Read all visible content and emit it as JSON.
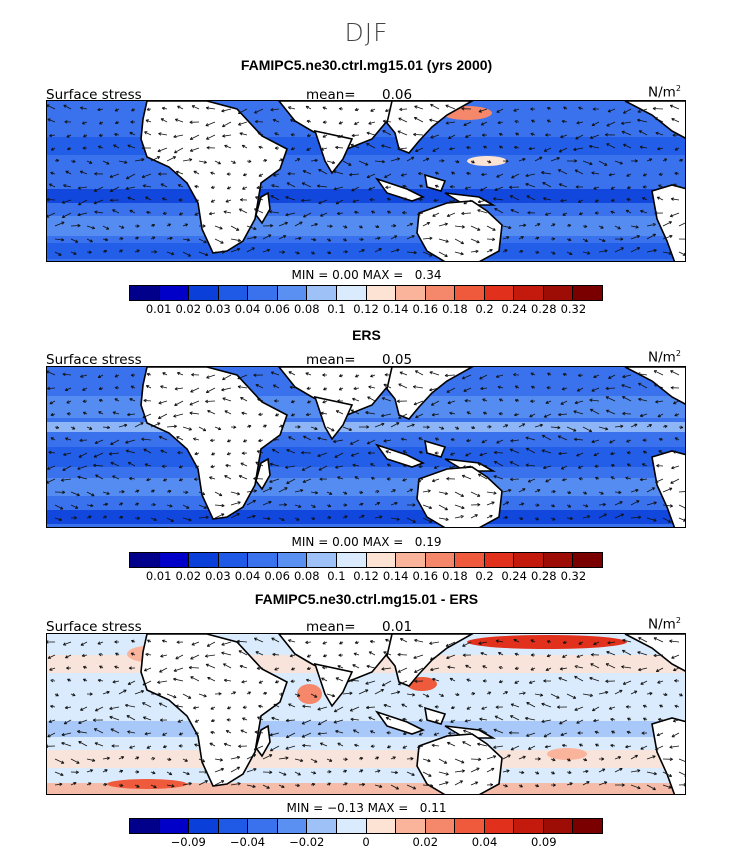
{
  "title": "DJF",
  "colorbar_std": {
    "colors": [
      "#00008b",
      "#0000c8",
      "#0a3fd9",
      "#1f5ae6",
      "#3a72ee",
      "#5a90f2",
      "#9ec2f7",
      "#d9ebfc",
      "#fde3d4",
      "#f9b49b",
      "#f5876a",
      "#ee5a3b",
      "#e1301b",
      "#c41a0e",
      "#9e0d05",
      "#7a0000"
    ],
    "labels": [
      "0.01",
      "0.02",
      "0.03",
      "0.04",
      "0.06",
      "0.08",
      "0.1",
      "0.12",
      "0.14",
      "0.16",
      "0.18",
      "0.2",
      "0.24",
      "0.28",
      "0.32"
    ]
  },
  "colorbar_diff": {
    "colors": [
      "#00008b",
      "#0000c8",
      "#0a3fd9",
      "#1f5ae6",
      "#3a72ee",
      "#5a90f2",
      "#9ec2f7",
      "#d9ebfc",
      "#fde3d4",
      "#f9b49b",
      "#f5876a",
      "#ee5a3b",
      "#e1301b",
      "#c41a0e",
      "#9e0d05",
      "#7a0000"
    ],
    "labels": [
      "",
      "−0.09",
      "",
      "−0.04",
      "",
      "−0.02",
      "",
      "0",
      "",
      "0.02",
      "",
      "0.04",
      "",
      "0.09",
      ""
    ]
  },
  "panels": [
    {
      "title": "FAMIPC5.ne30.ctrl.mg15.01 (yrs 2000)",
      "variable": "Surface stress",
      "mean_label": "mean=",
      "mean_value": "0.06",
      "units_base": "N/m",
      "units_exp": "2",
      "min_label": "MIN =",
      "min_value": "0.00",
      "max_label": "MAX =",
      "max_value": "0.34",
      "style": "model"
    },
    {
      "title": "ERS",
      "variable": "Surface stress",
      "mean_label": "mean=",
      "mean_value": "0.05",
      "units_base": "N/m",
      "units_exp": "2",
      "min_label": "MIN =",
      "min_value": "0.00",
      "max_label": "MAX =",
      "max_value": "0.19",
      "style": "obs"
    },
    {
      "title": "FAMIPC5.ne30.ctrl.mg15.01 - ERS",
      "variable": "Surface stress",
      "mean_label": "mean=",
      "mean_value": "0.01",
      "units_base": "N/m",
      "units_exp": "2",
      "min_label": "MIN =",
      "min_value": "−0.13",
      "max_label": "MAX =",
      "max_value": "0.11",
      "style": "diff"
    }
  ]
}
